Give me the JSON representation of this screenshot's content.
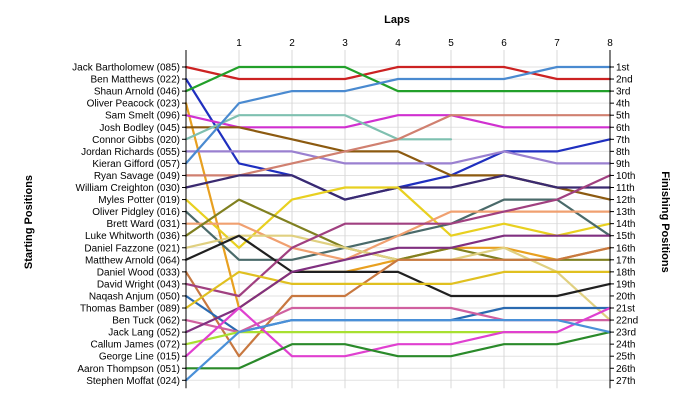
{
  "chart_data": {
    "type": "line",
    "title": "Laps",
    "ylabel_left": "Starting Positions",
    "ylabel_right": "Finishing Positions",
    "x": [
      0,
      1,
      2,
      3,
      4,
      5,
      6,
      7,
      8
    ],
    "x_tick_labels": [
      "1",
      "2",
      "3",
      "4",
      "5",
      "6",
      "7",
      "8"
    ],
    "y_rows": 27,
    "grid": true,
    "starting_labels": [
      "Jack Bartholomew (085)",
      "Ben Matthews (022)",
      "Shaun Arnold (046)",
      "Oliver Peacock (023)",
      "Sam Smelt (096)",
      "Josh Bodley (045)",
      "Connor Gibbs (020)",
      "Jordan Richards (055)",
      "Kieran Gifford (057)",
      "Ryan Savage (049)",
      "William Creighton (030)",
      "Myles Potter (019)",
      "Oliver Pidgley (016)",
      "Brett Ward (031)",
      "Luke Whitworth (036)",
      "Daniel Fazzone (021)",
      "Matthew Arnold (064)",
      "Daniel Wood (033)",
      "David Wright (043)",
      "Naqash Anjum (050)",
      "Thomas Bamber (089)",
      "Ben Tuck (062)",
      "Jack Lang (052)",
      "Callum James (072)",
      "George Line (015)",
      "Aaron Thompson (051)",
      "Stephen Moffat (024)"
    ],
    "finishing_labels": [
      "1st",
      "2nd",
      "3rd",
      "4th",
      "5th",
      "6th",
      "7th",
      "8th",
      "9th",
      "10th",
      "11th",
      "12th",
      "13th",
      "14th",
      "15th",
      "16th",
      "17th",
      "18th",
      "19th",
      "20th",
      "21st",
      "22nd",
      "23rd",
      "24th",
      "25th",
      "26th",
      "27th"
    ],
    "series": [
      {
        "color": "#cc2222",
        "values": [
          1,
          2,
          2,
          2,
          1,
          1,
          1,
          2,
          2
        ]
      },
      {
        "color": "#1f2fbf",
        "values": [
          2,
          9,
          10,
          12,
          11,
          10,
          8,
          8,
          7
        ]
      },
      {
        "color": "#22a02a",
        "values": [
          3,
          1,
          1,
          1,
          3,
          3,
          3,
          3,
          3
        ]
      },
      {
        "color": "#e8a020",
        "values": [
          4,
          21,
          18,
          18,
          17,
          16,
          16,
          17,
          16
        ]
      },
      {
        "color": "#d030d0",
        "values": [
          5,
          6,
          6,
          6,
          5,
          5,
          6,
          6,
          6
        ]
      },
      {
        "color": "#8c5a10",
        "values": [
          6,
          6,
          7,
          8,
          8,
          10,
          10,
          11,
          12
        ]
      },
      {
        "color": "#7fc0b0",
        "values": [
          7,
          5,
          5,
          5,
          7,
          7,
          null,
          null,
          null
        ]
      },
      {
        "color": "#9a80d0",
        "values": [
          8,
          8,
          8,
          9,
          9,
          9,
          8,
          9,
          9
        ]
      },
      {
        "color": "#4a8ad0",
        "values": [
          9,
          4,
          3,
          3,
          2,
          2,
          2,
          1,
          1
        ]
      },
      {
        "color": "#d08070",
        "values": [
          10,
          10,
          9,
          8,
          7,
          5,
          5,
          5,
          5
        ]
      },
      {
        "color": "#3a2a70",
        "values": [
          11,
          10,
          10,
          12,
          11,
          11,
          10,
          11,
          11
        ]
      },
      {
        "color": "#e8d020",
        "values": [
          12,
          16,
          12,
          11,
          11,
          15,
          14,
          15,
          14
        ]
      },
      {
        "color": "#4a6a6a",
        "values": [
          13,
          17,
          17,
          16,
          15,
          14,
          12,
          12,
          15
        ]
      },
      {
        "color": "#f0a070",
        "values": [
          14,
          14,
          16,
          17,
          15,
          13,
          13,
          13,
          13
        ]
      },
      {
        "color": "#808020",
        "values": [
          15,
          12,
          14,
          16,
          17,
          16,
          17,
          17,
          17
        ]
      },
      {
        "color": "#e0d080",
        "values": [
          16,
          15,
          15,
          16,
          17,
          17,
          16,
          18,
          22
        ]
      },
      {
        "color": "#202020",
        "values": [
          17,
          15,
          18,
          18,
          18,
          20,
          20,
          20,
          19
        ]
      },
      {
        "color": "#c87840",
        "values": [
          18,
          25,
          20,
          20,
          17,
          17,
          17,
          17,
          16
        ]
      },
      {
        "color": "#a04080",
        "values": [
          19,
          20,
          16,
          14,
          14,
          14,
          13,
          12,
          10
        ]
      },
      {
        "color": "#2a6ab0",
        "values": [
          20,
          23,
          22,
          22,
          22,
          22,
          21,
          21,
          21
        ]
      },
      {
        "color": "#e0c020",
        "values": [
          21,
          18,
          19,
          19,
          19,
          19,
          18,
          18,
          18
        ]
      },
      {
        "color": "#d060a0",
        "values": [
          22,
          23,
          21,
          21,
          21,
          21,
          22,
          22,
          22
        ]
      },
      {
        "color": "#803080",
        "values": [
          23,
          21,
          18,
          17,
          16,
          16,
          15,
          15,
          15
        ]
      },
      {
        "color": "#a8e030",
        "values": [
          24,
          23,
          23,
          23,
          23,
          23,
          23,
          23,
          null
        ]
      },
      {
        "color": "#e040d0",
        "values": [
          25,
          21,
          25,
          25,
          24,
          24,
          23,
          23,
          21
        ]
      },
      {
        "color": "#2a8a2a",
        "values": [
          26,
          26,
          24,
          24,
          25,
          25,
          24,
          24,
          23
        ]
      },
      {
        "color": "#4a90d8",
        "values": [
          27,
          23,
          22,
          22,
          22,
          22,
          22,
          22,
          23
        ]
      }
    ]
  }
}
